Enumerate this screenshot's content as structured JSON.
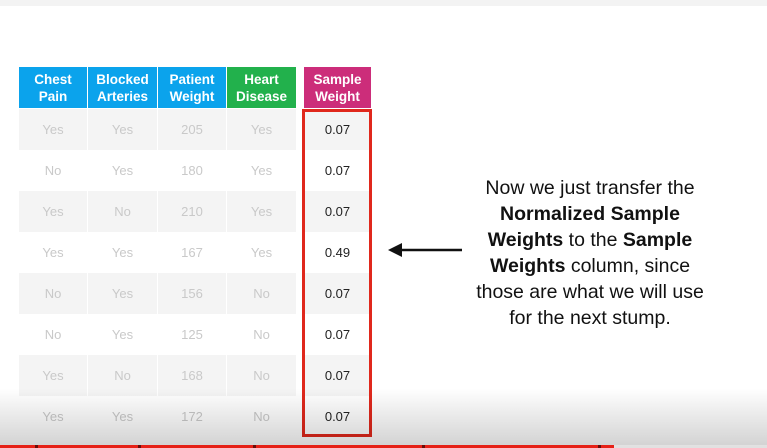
{
  "table": {
    "headers": [
      {
        "label": "Chest\nPain",
        "color": "#0ba3ec"
      },
      {
        "label": "Blocked\nArteries",
        "color": "#0ba3ec"
      },
      {
        "label": "Patient\nWeight",
        "color": "#0ba3ec"
      },
      {
        "label": "Heart\nDisease",
        "color": "#22b14c"
      },
      {
        "label": "Sample\nWeight",
        "color": "#cc2d7a"
      }
    ],
    "rows": [
      {
        "chest_pain": "Yes",
        "blocked_arteries": "Yes",
        "patient_weight": "205",
        "heart_disease": "Yes",
        "sample_weight": "0.07"
      },
      {
        "chest_pain": "No",
        "blocked_arteries": "Yes",
        "patient_weight": "180",
        "heart_disease": "Yes",
        "sample_weight": "0.07"
      },
      {
        "chest_pain": "Yes",
        "blocked_arteries": "No",
        "patient_weight": "210",
        "heart_disease": "Yes",
        "sample_weight": "0.07"
      },
      {
        "chest_pain": "Yes",
        "blocked_arteries": "Yes",
        "patient_weight": "167",
        "heart_disease": "Yes",
        "sample_weight": "0.49"
      },
      {
        "chest_pain": "No",
        "blocked_arteries": "Yes",
        "patient_weight": "156",
        "heart_disease": "No",
        "sample_weight": "0.07"
      },
      {
        "chest_pain": "No",
        "blocked_arteries": "Yes",
        "patient_weight": "125",
        "heart_disease": "No",
        "sample_weight": "0.07"
      },
      {
        "chest_pain": "Yes",
        "blocked_arteries": "No",
        "patient_weight": "168",
        "heart_disease": "No",
        "sample_weight": "0.07"
      },
      {
        "chest_pain": "Yes",
        "blocked_arteries": "Yes",
        "patient_weight": "172",
        "heart_disease": "No",
        "sample_weight": "0.07"
      }
    ],
    "row_shade_even": "#f4f4f4",
    "row_shade_odd": "#ffffff",
    "highlight_color": "#e0281c"
  },
  "caption": {
    "line1": "Now we just transfer the",
    "bold1": "Normalized Sample",
    "bold2": "Weights",
    "to_the": " to the ",
    "bold3": "Sample",
    "bold4": "Weights",
    "rest4": " column, since",
    "line5": "those are what we will use",
    "line6": "for the next stump."
  },
  "arrow_icon": "arrow-left-icon",
  "video_progress": {
    "played_fraction": 0.8,
    "color": "#e62117"
  }
}
